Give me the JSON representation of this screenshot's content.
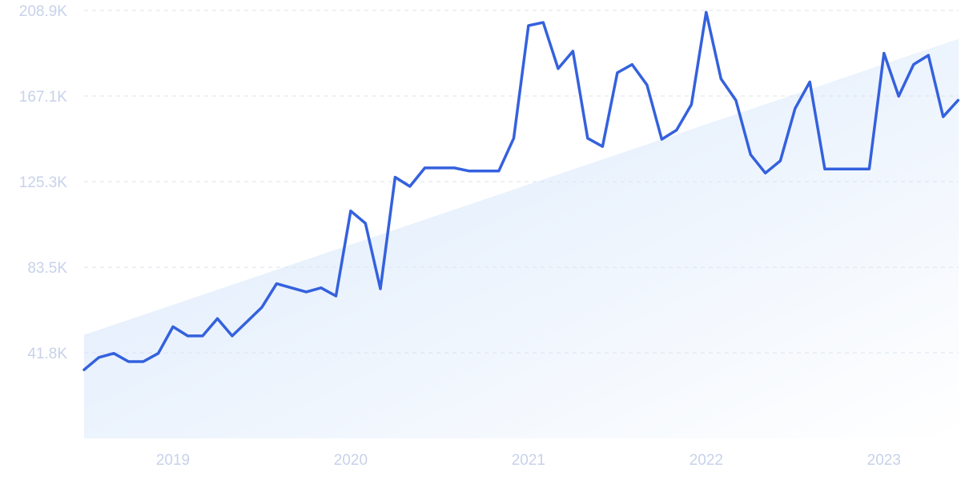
{
  "chart_data": {
    "type": "line",
    "title": "",
    "xlabel": "",
    "ylabel": "",
    "ylim": [
      0,
      208900
    ],
    "grid": true,
    "legend": "none",
    "y_ticks": [
      {
        "value": 41800,
        "label": "41.8K"
      },
      {
        "value": 83500,
        "label": "83.5K"
      },
      {
        "value": 125300,
        "label": "125.3K"
      },
      {
        "value": 167100,
        "label": "167.1K"
      },
      {
        "value": 208900,
        "label": "208.9K"
      }
    ],
    "x_ticks": [
      {
        "value": 2019.0,
        "label": "2019"
      },
      {
        "value": 2020.0,
        "label": "2020"
      },
      {
        "value": 2021.0,
        "label": "2021"
      },
      {
        "value": 2022.0,
        "label": "2022"
      },
      {
        "value": 2023.0,
        "label": "2023"
      }
    ],
    "xlim": [
      2018.5,
      2023.42
    ],
    "series": [
      {
        "color": "#3461dd",
        "x": [
          2018.5,
          2018.583,
          2018.667,
          2018.75,
          2018.833,
          2018.917,
          2019.0,
          2019.083,
          2019.167,
          2019.25,
          2019.333,
          2019.417,
          2019.5,
          2019.583,
          2019.667,
          2019.75,
          2019.833,
          2019.917,
          2020.0,
          2020.083,
          2020.167,
          2020.25,
          2020.333,
          2020.417,
          2020.5,
          2020.583,
          2020.667,
          2020.75,
          2020.833,
          2020.917,
          2021.0,
          2021.083,
          2021.167,
          2021.25,
          2021.333,
          2021.417,
          2021.5,
          2021.583,
          2021.667,
          2021.75,
          2021.833,
          2021.917,
          2022.0,
          2022.083,
          2022.167,
          2022.25,
          2022.333,
          2022.417,
          2022.5,
          2022.583,
          2022.667,
          2022.75,
          2022.833,
          2022.917,
          2023.0,
          2023.083,
          2023.167,
          2023.25,
          2023.333,
          2023.417
        ],
        "values": [
          33500,
          39500,
          41500,
          37500,
          37500,
          41500,
          54500,
          50000,
          50000,
          58500,
          50000,
          57000,
          64000,
          75500,
          73500,
          71500,
          73500,
          69500,
          111000,
          105000,
          73000,
          127500,
          123000,
          132000,
          132000,
          132000,
          130500,
          130500,
          130500,
          146500,
          201500,
          203000,
          180500,
          189000,
          146500,
          142500,
          178500,
          182500,
          172500,
          146000,
          150500,
          163000,
          208000,
          175500,
          165000,
          138500,
          129500,
          135500,
          161000,
          174000,
          131500,
          131500,
          131500,
          131500,
          188000,
          167000,
          182500,
          187000,
          157000,
          165000
        ]
      }
    ],
    "trend": {
      "start": 50500,
      "end": 195000,
      "color": "#d9e8fb"
    }
  }
}
